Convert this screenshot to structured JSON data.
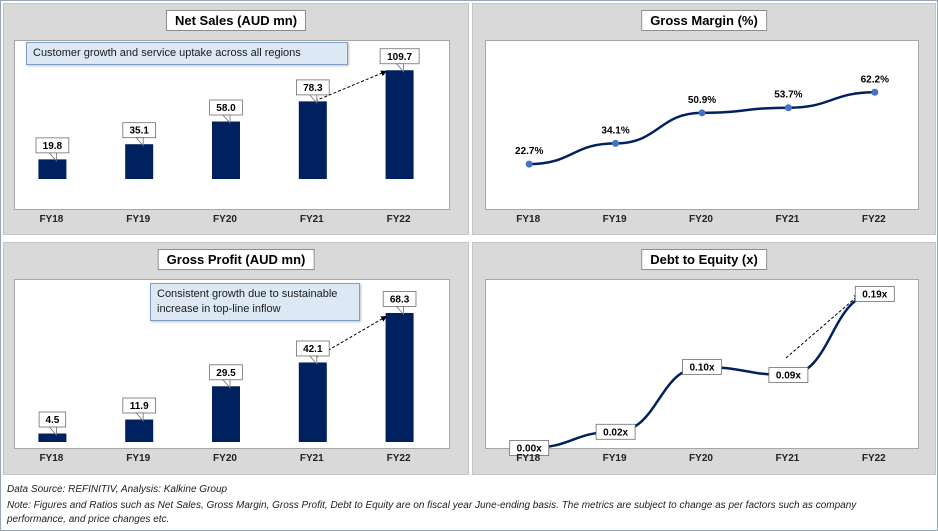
{
  "footer": {
    "source": "Data Source: REFINITIV, Analysis: Kalkine Group",
    "note": "Note: Figures and Ratios such as Net Sales, Gross Margin, Gross Profit, Debt to Equity are on fiscal year June-ending basis. The metrics are subject to change as per factors such as company performance, and price changes etc."
  },
  "colors": {
    "bar": "#002060",
    "line": "#002060",
    "marker": "#4472c4",
    "panel": "#d9d9d9"
  },
  "chart_data": [
    {
      "id": "net-sales",
      "type": "bar",
      "title": "Net Sales (AUD mn)",
      "categories": [
        "FY18",
        "FY19",
        "FY20",
        "FY21",
        "FY22"
      ],
      "values": [
        19.8,
        35.1,
        58.0,
        78.3,
        109.7
      ],
      "labels": [
        "19.8",
        "35.1",
        "58.0",
        "78.3",
        "109.7"
      ],
      "ylim": [
        0,
        115
      ],
      "annotation": "Customer growth and service uptake across all regions",
      "xlabel": "",
      "ylabel": ""
    },
    {
      "id": "gross-margin",
      "type": "line",
      "title": "Gross Margin (%)",
      "categories": [
        "FY18",
        "FY19",
        "FY20",
        "FY21",
        "FY22"
      ],
      "values": [
        22.7,
        34.1,
        50.9,
        53.7,
        62.2
      ],
      "labels": [
        "22.7%",
        "34.1%",
        "50.9%",
        "53.7%",
        "62.2%"
      ],
      "ylim": [
        20,
        75
      ],
      "xlabel": "",
      "ylabel": ""
    },
    {
      "id": "gross-profit",
      "type": "bar",
      "title": "Gross Profit (AUD mn)",
      "categories": [
        "FY18",
        "FY19",
        "FY20",
        "FY21",
        "FY22"
      ],
      "values": [
        4.5,
        11.9,
        29.5,
        42.1,
        68.3
      ],
      "labels": [
        "4.5",
        "11.9",
        "29.5",
        "42.1",
        "68.3"
      ],
      "ylim": [
        0,
        72
      ],
      "annotation": "Consistent growth due to sustainable increase in top-line inflow",
      "xlabel": "",
      "ylabel": ""
    },
    {
      "id": "debt-equity",
      "type": "line",
      "title": "Debt to Equity (x)",
      "categories": [
        "FY18",
        "FY19",
        "FY20",
        "FY21",
        "FY22"
      ],
      "values": [
        0.0,
        0.02,
        0.1,
        0.09,
        0.19
      ],
      "labels": [
        "0.00x",
        "0.02x",
        "0.10x",
        "0.09x",
        "0.19x"
      ],
      "ylim": [
        0,
        0.19
      ],
      "xlabel": "",
      "ylabel": ""
    }
  ]
}
